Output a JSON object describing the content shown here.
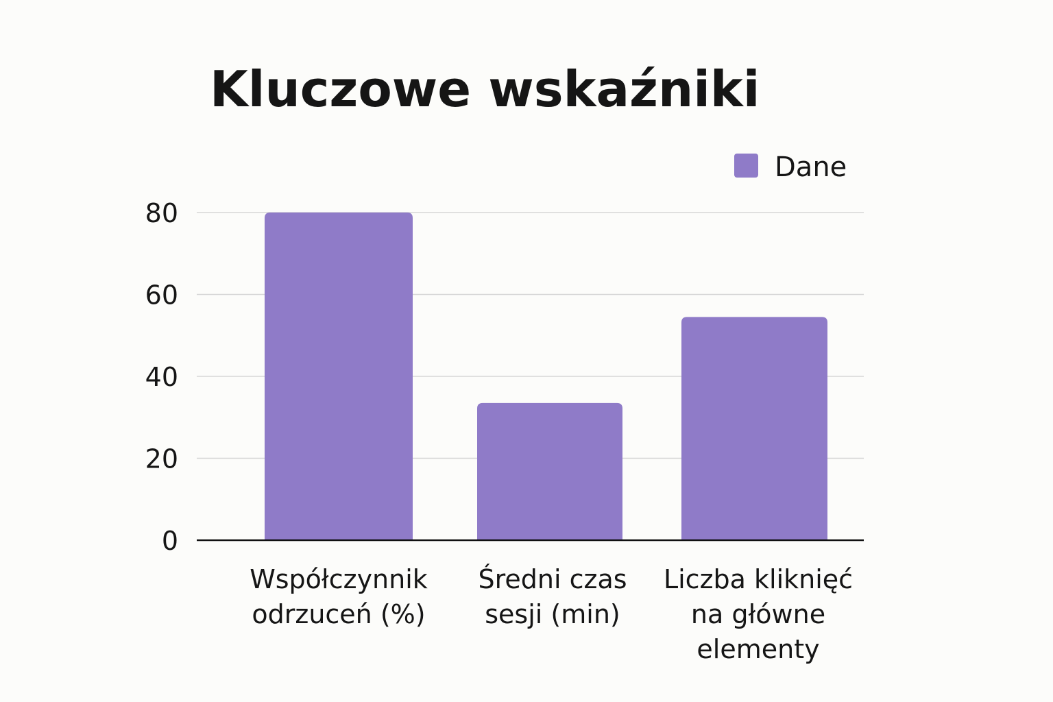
{
  "chart_data": {
    "type": "bar",
    "title": "Kluczowe wskaźniki",
    "xlabel": "",
    "ylabel": "",
    "categories": [
      "Współczynnik odrzuceń (%)",
      "Średni czas sesji (min)",
      "Liczba kliknięć na główne elementy"
    ],
    "category_lines": [
      [
        "Współczynnik",
        "odrzuceń (%)"
      ],
      [
        "Średni czas",
        "sesji (min)"
      ],
      [
        "Liczba kliknięć",
        "na główne",
        "elementy"
      ]
    ],
    "series": [
      {
        "name": "Dane",
        "values": [
          80,
          33.5,
          54.5
        ],
        "color": "#8f7bc8"
      }
    ],
    "ylim": [
      0,
      80
    ],
    "yticks": [
      0,
      20,
      40,
      60,
      80
    ],
    "grid": true,
    "legend_position": "top-right"
  }
}
